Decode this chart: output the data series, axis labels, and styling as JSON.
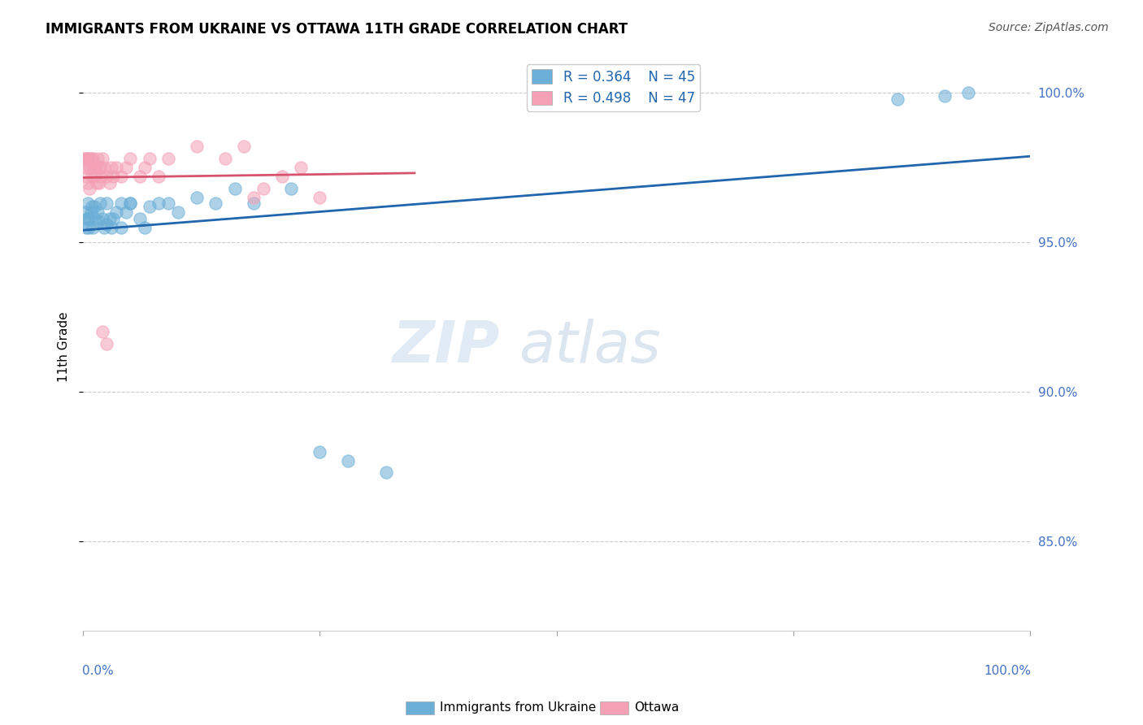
{
  "title": "IMMIGRANTS FROM UKRAINE VS OTTAWA 11TH GRADE CORRELATION CHART",
  "source": "Source: ZipAtlas.com",
  "ylabel": "11th Grade",
  "legend_label1": "Immigrants from Ukraine",
  "legend_label2": "Ottawa",
  "R1": 0.364,
  "N1": 45,
  "R2": 0.498,
  "N2": 47,
  "color_blue": "#6baed6",
  "color_pink": "#f4a0b5",
  "color_line_blue": "#2166ac",
  "color_line_pink": "#d6536d",
  "xlim": [
    0.0,
    1.0
  ],
  "ylim": [
    0.82,
    1.01
  ],
  "watermark_zip": "ZIP",
  "watermark_atlas": "atlas",
  "blue_x": [
    0.002,
    0.003,
    0.004,
    0.005,
    0.005,
    0.006,
    0.007,
    0.008,
    0.009,
    0.01,
    0.012,
    0.013,
    0.015,
    0.016,
    0.018,
    0.02,
    0.022,
    0.025,
    0.025,
    0.028,
    0.03,
    0.032,
    0.035,
    0.04,
    0.045,
    0.05,
    0.06,
    0.065,
    0.07,
    0.08,
    0.09,
    0.1,
    0.12,
    0.14,
    0.16,
    0.18,
    0.22,
    0.25,
    0.28,
    0.32,
    0.04,
    0.05,
    0.86,
    0.91,
    0.935
  ],
  "blue_y": [
    0.96,
    0.955,
    0.958,
    0.963,
    0.958,
    0.955,
    0.958,
    0.96,
    0.962,
    0.955,
    0.962,
    0.958,
    0.96,
    0.957,
    0.963,
    0.958,
    0.955,
    0.963,
    0.956,
    0.958,
    0.955,
    0.958,
    0.96,
    0.955,
    0.96,
    0.963,
    0.958,
    0.955,
    0.962,
    0.963,
    0.963,
    0.96,
    0.965,
    0.963,
    0.968,
    0.963,
    0.968,
    0.88,
    0.877,
    0.873,
    0.963,
    0.963,
    0.998,
    0.999,
    1.0
  ],
  "pink_x": [
    0.001,
    0.002,
    0.003,
    0.003,
    0.004,
    0.005,
    0.005,
    0.006,
    0.007,
    0.007,
    0.008,
    0.009,
    0.01,
    0.011,
    0.012,
    0.013,
    0.014,
    0.015,
    0.016,
    0.017,
    0.018,
    0.019,
    0.02,
    0.022,
    0.025,
    0.028,
    0.03,
    0.032,
    0.035,
    0.04,
    0.045,
    0.05,
    0.06,
    0.065,
    0.07,
    0.08,
    0.09,
    0.12,
    0.15,
    0.17,
    0.02,
    0.025,
    0.18,
    0.19,
    0.21,
    0.23,
    0.25
  ],
  "pink_y": [
    0.978,
    0.975,
    0.978,
    0.972,
    0.978,
    0.976,
    0.97,
    0.978,
    0.975,
    0.968,
    0.978,
    0.972,
    0.978,
    0.975,
    0.972,
    0.975,
    0.97,
    0.978,
    0.975,
    0.97,
    0.975,
    0.972,
    0.978,
    0.975,
    0.972,
    0.97,
    0.975,
    0.972,
    0.975,
    0.972,
    0.975,
    0.978,
    0.972,
    0.975,
    0.978,
    0.972,
    0.978,
    0.982,
    0.978,
    0.982,
    0.92,
    0.916,
    0.965,
    0.968,
    0.972,
    0.975,
    0.965
  ]
}
